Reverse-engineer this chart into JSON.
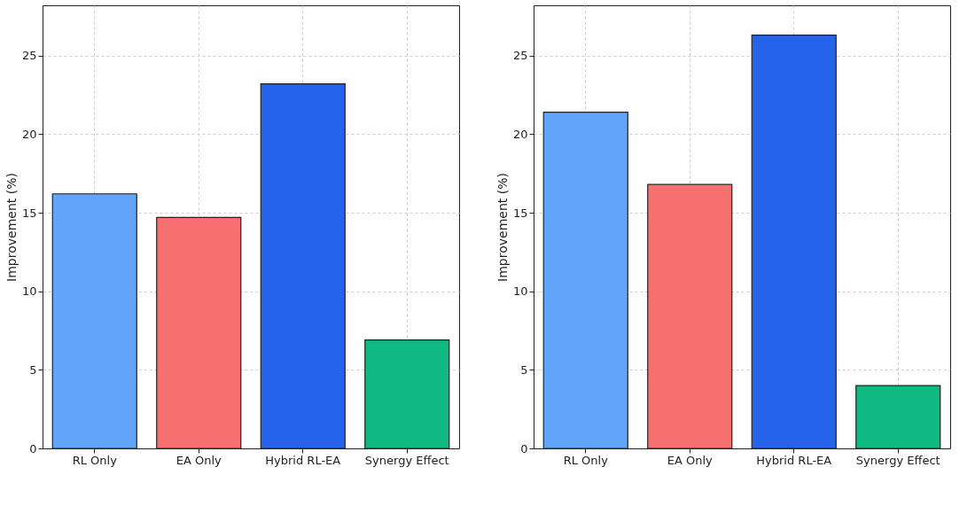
{
  "chart_data": [
    {
      "type": "bar",
      "ylabel": "Improvement (%)",
      "categories": [
        "RL Only",
        "EA Only",
        "Hybrid RL-EA",
        "Synergy Effect"
      ],
      "values": [
        16.2,
        14.7,
        23.2,
        6.9
      ],
      "colors": [
        "#60a5fa",
        "#f87171",
        "#2563eb",
        "#10b981"
      ],
      "ylim": [
        0,
        28.2
      ],
      "yticks": [
        0,
        5,
        10,
        15,
        20,
        25
      ],
      "grid": true
    },
    {
      "type": "bar",
      "ylabel": "Improvement (%)",
      "categories": [
        "RL Only",
        "EA Only",
        "Hybrid RL-EA",
        "Synergy Effect"
      ],
      "values": [
        21.4,
        16.8,
        26.3,
        4.0
      ],
      "colors": [
        "#60a5fa",
        "#f87171",
        "#2563eb",
        "#10b981"
      ],
      "ylim": [
        0,
        28.2
      ],
      "yticks": [
        0,
        5,
        10,
        15,
        20,
        25
      ],
      "grid": true
    }
  ]
}
